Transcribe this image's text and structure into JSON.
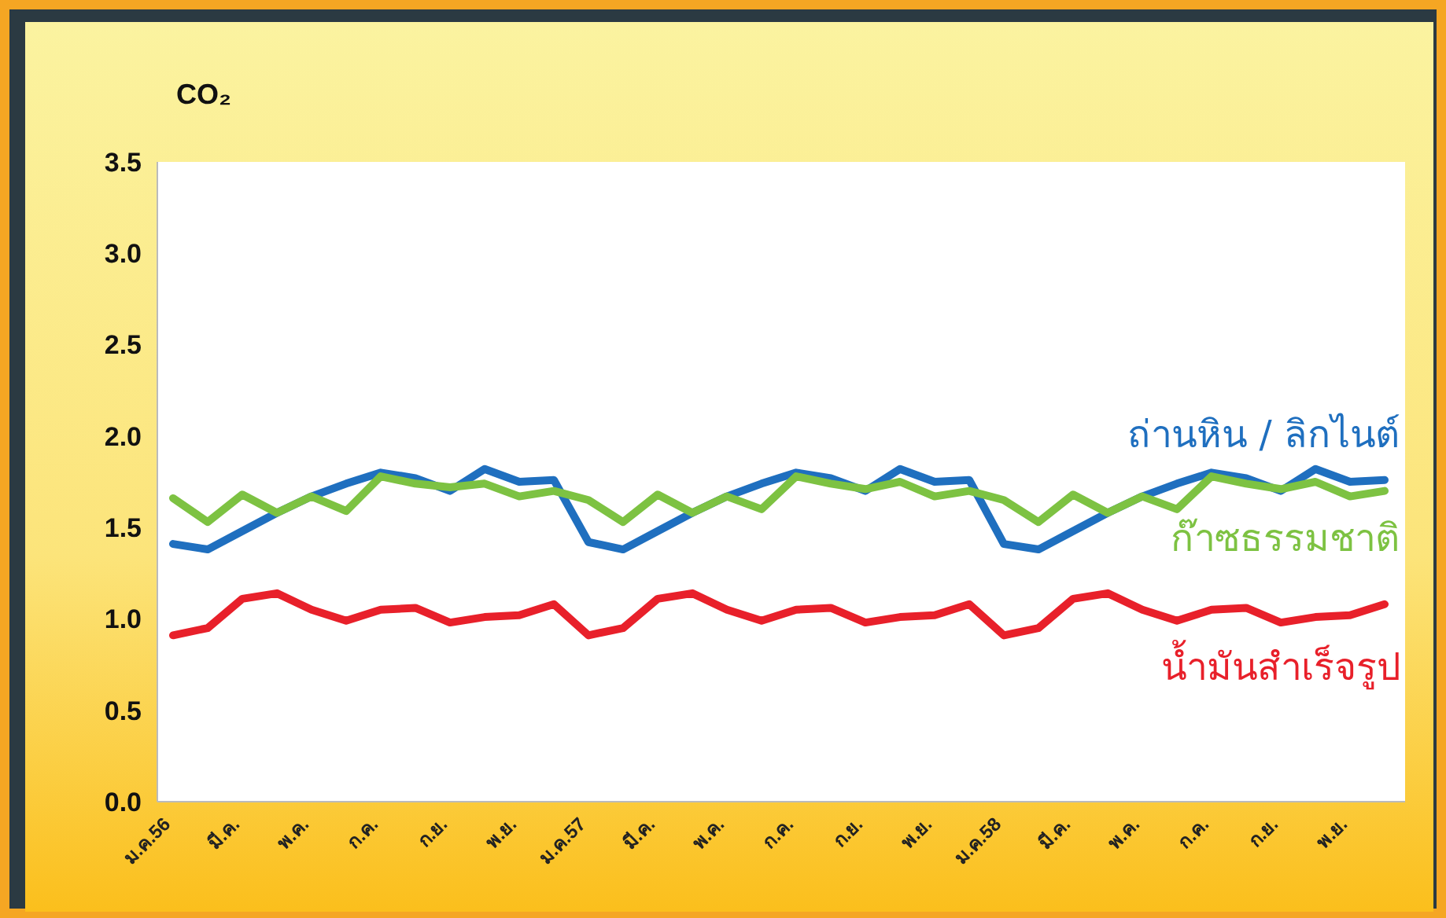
{
  "chart_data": {
    "type": "line",
    "ylabel": "CO₂",
    "categories": [
      "ม.ค.56",
      null,
      "มี.ค.",
      null,
      "พ.ค.",
      null,
      "ก.ค.",
      null,
      "ก.ย.",
      null,
      "พ.ย.",
      null,
      "ม.ค.57",
      null,
      "มี.ค.",
      null,
      "พ.ค.",
      null,
      "ก.ค.",
      null,
      "ก.ย.",
      null,
      "พ.ย.",
      null,
      "ม.ค.58",
      null,
      "มี.ค.",
      null,
      "พ.ค.",
      null,
      "ก.ค.",
      null,
      "ก.ย.",
      null,
      "พ.ย.",
      null
    ],
    "series": [
      {
        "name": "ถ่านหิน / ลิกไนต์",
        "color": "#1f6fbf",
        "values": [
          1.41,
          1.38,
          1.48,
          1.58,
          1.67,
          1.74,
          1.8,
          1.77,
          1.7,
          1.82,
          1.75,
          1.76,
          1.42,
          1.38,
          1.48,
          1.58,
          1.67,
          1.74,
          1.8,
          1.77,
          1.7,
          1.82,
          1.75,
          1.76,
          1.41,
          1.38,
          1.48,
          1.58,
          1.67,
          1.74,
          1.8,
          1.77,
          1.7,
          1.82,
          1.75,
          1.76
        ]
      },
      {
        "name": "ก๊าซธรรมชาติ",
        "color": "#7dc242",
        "values": [
          1.66,
          1.53,
          1.68,
          1.58,
          1.67,
          1.59,
          1.78,
          1.74,
          1.72,
          1.74,
          1.67,
          1.7,
          1.65,
          1.53,
          1.68,
          1.58,
          1.67,
          1.6,
          1.78,
          1.74,
          1.71,
          1.75,
          1.67,
          1.7,
          1.65,
          1.53,
          1.68,
          1.58,
          1.67,
          1.6,
          1.78,
          1.74,
          1.71,
          1.75,
          1.67,
          1.7
        ]
      },
      {
        "name": "น้ำมันสำเร็จรูป",
        "color": "#e8202a",
        "values": [
          0.91,
          0.95,
          1.11,
          1.14,
          1.05,
          0.99,
          1.05,
          1.06,
          0.98,
          1.01,
          1.02,
          1.08,
          0.91,
          0.95,
          1.11,
          1.14,
          1.05,
          0.99,
          1.05,
          1.06,
          0.98,
          1.01,
          1.02,
          1.08,
          0.91,
          0.95,
          1.11,
          1.14,
          1.05,
          0.99,
          1.05,
          1.06,
          0.98,
          1.01,
          1.02,
          1.08
        ]
      }
    ],
    "ylim": [
      0,
      3.5
    ],
    "yticks": [
      {
        "value": 0,
        "label": "0.0"
      },
      {
        "value": 0.5,
        "label": "0.5"
      },
      {
        "value": 1,
        "label": "1.0"
      },
      {
        "value": 1.5,
        "label": "1.5"
      },
      {
        "value": 2,
        "label": "2.0"
      },
      {
        "value": 2.5,
        "label": "2.5"
      },
      {
        "value": 3,
        "label": "3.0"
      },
      {
        "value": 3.5,
        "label": "3.5"
      }
    ],
    "marker": "none",
    "line_style": "solid"
  }
}
